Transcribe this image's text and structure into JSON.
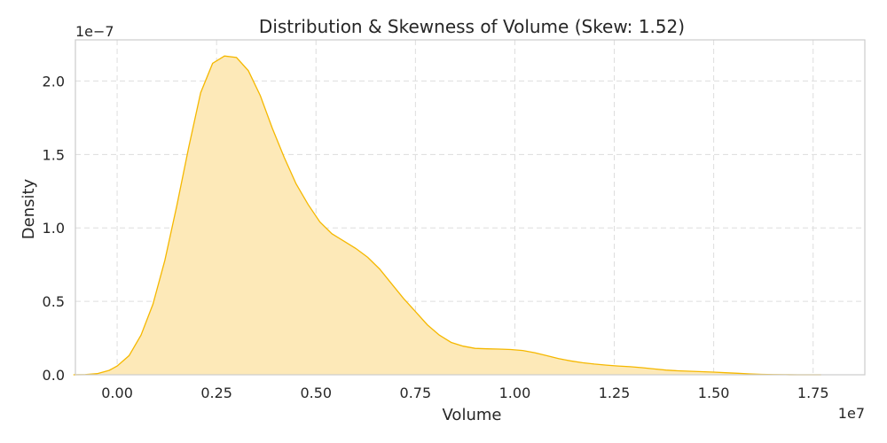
{
  "chart_data": {
    "type": "area",
    "title": "Distribution & Skewness of Volume (Skew: 1.52)",
    "xlabel": "Volume",
    "ylabel": "Density",
    "x_offset_label": "1e7",
    "y_offset_label": "1e−7",
    "xlim": [
      -1050000.0,
      18800000.0
    ],
    "ylim": [
      0,
      2.28e-07
    ],
    "x_ticks": [
      0,
      2500000,
      5000000,
      7500000,
      10000000,
      12500000,
      15000000,
      17500000
    ],
    "x_tick_labels": [
      "0.00",
      "0.25",
      "0.50",
      "0.75",
      "1.00",
      "1.25",
      "1.50",
      "1.75"
    ],
    "y_ticks": [
      0,
      5e-08,
      1e-07,
      1.5e-07,
      2e-07
    ],
    "y_tick_labels": [
      "0.0",
      "0.5",
      "1.0",
      "1.5",
      "2.0"
    ],
    "grid": true,
    "colors": {
      "line": "#f5b800",
      "fill": "#fde9b8"
    },
    "series": [
      {
        "x": [
          -1100000,
          -800000,
          -500000,
          -200000,
          0,
          300000,
          600000,
          900000,
          1200000,
          1500000,
          1800000,
          2100000,
          2400000,
          2700000,
          3000000,
          3300000,
          3600000,
          3900000,
          4200000,
          4500000,
          4800000,
          5100000,
          5400000,
          5700000,
          6000000,
          6300000,
          6600000,
          6900000,
          7200000,
          7500000,
          7800000,
          8100000,
          8400000,
          8700000,
          9000000,
          9300000,
          9600000,
          9900000,
          10200000,
          10500000,
          10800000,
          11100000,
          11400000,
          11700000,
          12000000,
          12300000,
          12600000,
          12900000,
          13200000,
          13500000,
          13800000,
          14100000,
          14400000,
          14700000,
          15000000,
          15300000,
          15600000,
          15900000,
          16200000,
          16500000,
          16800000,
          17100000,
          17400000,
          17700000
        ],
        "y": [
          0,
          1e-10,
          8e-10,
          3e-09,
          6e-09,
          1.3e-08,
          2.7e-08,
          4.8e-08,
          7.8e-08,
          1.15e-07,
          1.55e-07,
          1.92e-07,
          2.12e-07,
          2.17e-07,
          2.16e-07,
          2.07e-07,
          1.9e-07,
          1.68e-07,
          1.48e-07,
          1.3e-07,
          1.16e-07,
          1.04e-07,
          9.6e-08,
          9.1e-08,
          8.6e-08,
          8e-08,
          7.2e-08,
          6.2e-08,
          5.2e-08,
          4.3e-08,
          3.4e-08,
          2.7e-08,
          2.2e-08,
          1.95e-08,
          1.8e-08,
          1.77e-08,
          1.75e-08,
          1.72e-08,
          1.65e-08,
          1.5e-08,
          1.3e-08,
          1.1e-08,
          9.5e-09,
          8.2e-09,
          7.3e-09,
          6.6e-09,
          6e-09,
          5.5e-09,
          4.8e-09,
          4e-09,
          3.2e-09,
          2.7e-09,
          2.4e-09,
          2.1e-09,
          1.8e-09,
          1.4e-09,
          1e-09,
          6e-10,
          3e-10,
          1.5e-10,
          6e-11,
          2e-11,
          5e-12,
          0
        ]
      }
    ]
  }
}
